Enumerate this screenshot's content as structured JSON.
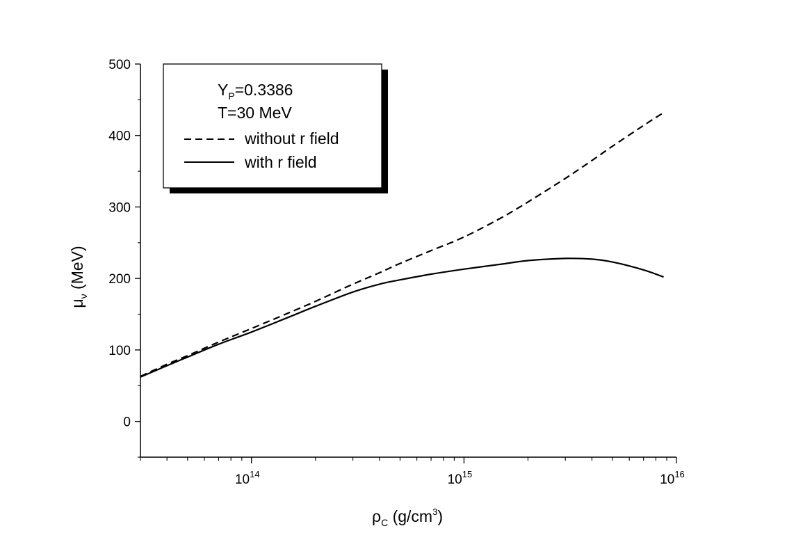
{
  "chart_data": {
    "type": "line",
    "xlabel": {
      "main": "ρ",
      "sub": "C",
      "rest": " (g/cm",
      "sup": "3",
      "end": ")"
    },
    "ylabel": {
      "main": "μ",
      "sub": "ν",
      "rest": " (MeV)"
    },
    "x_scale": "log",
    "xlim": [
      30000000000000,
      10000000000000000
    ],
    "ylim": [
      -50,
      500
    ],
    "x_ticks": [
      {
        "base": "10",
        "exp": "14",
        "value": 100000000000000
      },
      {
        "base": "10",
        "exp": "15",
        "value": 1000000000000000
      },
      {
        "base": "10",
        "exp": "16",
        "value": 10000000000000000
      }
    ],
    "y_ticks": [
      "0",
      "100",
      "200",
      "300",
      "400",
      "500"
    ],
    "grid": false,
    "legend": {
      "placement": "top-left",
      "title_lines": [
        {
          "main": "Y",
          "sub": "P",
          "rest": "=0.3386"
        },
        {
          "main": "T=30 MeV",
          "sub": "",
          "rest": ""
        }
      ],
      "entries": [
        {
          "label": "without r field",
          "style": "dashed"
        },
        {
          "label": "with r field",
          "style": "solid"
        }
      ]
    },
    "series": [
      {
        "name": "without r field",
        "style": "dashed",
        "color": "#000000",
        "x": [
          30000000000000,
          40000000000000,
          50000000000000,
          70000000000000,
          100000000000000,
          150000000000000,
          200000000000000,
          300000000000000,
          400000000000000,
          500000000000000,
          700000000000000,
          1000000000000000,
          1500000000000000,
          2000000000000000,
          3000000000000000,
          4000000000000000,
          5000000000000000,
          7000000000000000,
          8700000000000000
        ],
        "y": [
          63,
          80,
          92,
          111,
          130,
          152,
          168,
          192,
          208,
          221,
          239,
          258,
          285,
          307,
          340,
          365,
          385,
          414,
          432
        ]
      },
      {
        "name": "with r field",
        "style": "solid",
        "color": "#000000",
        "x": [
          30000000000000,
          40000000000000,
          50000000000000,
          70000000000000,
          100000000000000,
          150000000000000,
          200000000000000,
          300000000000000,
          400000000000000,
          500000000000000,
          700000000000000,
          1000000000000000,
          1500000000000000,
          2000000000000000,
          3000000000000000,
          4000000000000000,
          5000000000000000,
          7000000000000000,
          8700000000000000
        ],
        "y": [
          62,
          78,
          90,
          108,
          125,
          146,
          161,
          181,
          192,
          198,
          206,
          213,
          220,
          225,
          228,
          227,
          223,
          212,
          202
        ]
      }
    ]
  }
}
